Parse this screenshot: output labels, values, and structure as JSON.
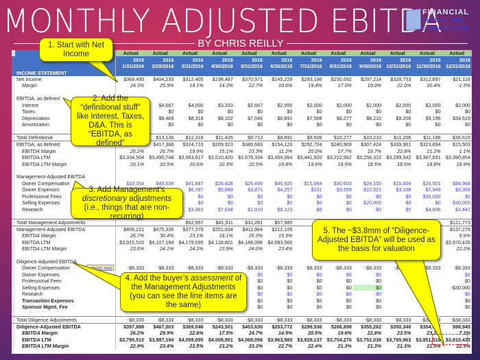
{
  "title": "MONTHLY ADJUSTED EBITDA",
  "byline": "BY CHRIS REILLY",
  "logo": {
    "line1": "FINANCIAL",
    "line2": "MODELING",
    "line3": "EDUCATION"
  },
  "colors": {
    "header_blue": "#4472c4",
    "actual_green": "#a9d08e",
    "adjustment_blue": "#3a3af0",
    "callout": "#ffff00"
  },
  "sheet": {
    "actual": [
      "Actual",
      "Actual",
      "Actual",
      "Actual",
      "Actual",
      "Actual",
      "Actual",
      "Actual",
      "Actual",
      "Actual",
      "Actual",
      "Actual"
    ],
    "years": [
      "2016",
      "2016",
      "2016",
      "2016",
      "2016",
      "2016",
      "2016",
      "2016",
      "2016",
      "2016",
      "2016",
      "2016"
    ],
    "dates": [
      "1/31/2016",
      "2/29/2016",
      "3/31/2016",
      "4/30/2016",
      "5/31/2016",
      "6/30/2016",
      "7/31/2016",
      "8/31/2016",
      "9/30/2016",
      "10/31/2016",
      "11/30/2016",
      "12/31/2016"
    ],
    "section": "INCOME STATEMENT",
    "rows": [
      {
        "label": "Net Income",
        "style": "",
        "values": [
          "$369,495",
          "$404,233",
          "$312,405",
          "$198,487",
          "$370,971",
          "$145,229",
          "$283,196",
          "$230,692",
          "$297,214",
          "$328,753",
          "$312,697",
          "-$21,116"
        ]
      },
      {
        "label": "Margin",
        "style": "italic",
        "values": [
          "24.3%",
          "25.9%",
          "19.1%",
          "14.3%",
          "22.7%",
          "10.6%",
          "19.4%",
          "17.0%",
          "19.0%",
          "22.0%",
          "20.4%",
          "-1.5%"
        ]
      },
      {
        "label": "",
        "style": "",
        "values": []
      },
      {
        "label": "EBITDA, as defined",
        "style": "",
        "values": []
      },
      {
        "label": "Interest",
        "style": "sub",
        "values": [
          "",
          "$4,667",
          "$4,000",
          "$3,333",
          "$2,667",
          "$2,000",
          "$2,000",
          "$2,000",
          "$2,000",
          "$2,000",
          "$2,000",
          "$2,000"
        ]
      },
      {
        "label": "Taxes",
        "style": "sub",
        "values": [
          "",
          "$0",
          "$0",
          "$0",
          "$0",
          "$0",
          "$0",
          "$0",
          "$0",
          "$0",
          "$0",
          "$0"
        ]
      },
      {
        "label": "Depreciation",
        "style": "sub",
        "values": [
          "",
          "$8,469",
          "$8,318",
          "$8,102",
          "$7,046",
          "$6,891",
          "$7,508",
          "$8,277",
          "$8,210",
          "$9,208",
          "$9,196",
          "$34,619"
        ]
      },
      {
        "label": "Amortization",
        "style": "sub",
        "values": [
          "",
          "$0",
          "$0",
          "$0",
          "$0",
          "$0",
          "$0",
          "$0",
          "$0",
          "$0",
          "$0",
          "$0"
        ]
      },
      {
        "label": "",
        "style": "",
        "values": []
      },
      {
        "label": "Total Definitional",
        "style": "total",
        "values": [
          "",
          "$13,136",
          "$12,318",
          "$11,435",
          "$9,713",
          "$8,891",
          "$9,508",
          "$10,277",
          "$10,210",
          "$11,208",
          "$11,196",
          "$36,619"
        ]
      },
      {
        "label": "EBITDA, as defined",
        "style": "result",
        "values": [
          "",
          "$417,368",
          "$324,723",
          "$209,923",
          "$380,683",
          "$154,120",
          "$292,704",
          "$240,969",
          "$307,424",
          "$339,961",
          "$323,894",
          "$15,503"
        ]
      },
      {
        "label": "EBITDA Margin",
        "style": "italic",
        "values": [
          "25.2%",
          "26.7%",
          "19.9%",
          "15.1%",
          "23.3%",
          "11.2%",
          "20.0%",
          "17.7%",
          "19.7%",
          "22.8%",
          "21.2%",
          "1.1%"
        ]
      },
      {
        "label": "EBITDA LTM",
        "style": "sub",
        "values": [
          "$3,334,504",
          "$3,495,748",
          "$3,563,617",
          "$3,510,420",
          "$3,578,334",
          "$3,454,064",
          "$3,441,920",
          "$3,222,962",
          "$3,256,312",
          "$3,289,542",
          "$3,367,831",
          "$3,390,854"
        ]
      },
      {
        "label": "EBITDA LTM Margin",
        "style": "italic",
        "values": [
          "20.1%",
          "20.5%",
          "20.6%",
          "20.3%",
          "20.5%",
          "19.8%",
          "19.6%",
          "18.5%",
          "18.5%",
          "18.6%",
          "18.8%",
          "18.9%"
        ]
      },
      {
        "label": "",
        "style": "",
        "values": []
      },
      {
        "label": "Management-Adjusted EBITDA",
        "style": "",
        "values": []
      },
      {
        "label": "Owner Compensation",
        "style": "sub blue",
        "values": [
          "$33,354",
          "$43,034",
          "$41,887",
          "$28,428",
          "$25,499",
          "$45,605",
          "$15,064",
          "$30,603",
          "$24,150",
          "$15,604",
          "$26,501",
          "$84,968"
        ]
      },
      {
        "label": "Owner Expenses",
        "style": "sub blue",
        "values": [
          "",
          "",
          "$6,787",
          "$5,849",
          "$3,871",
          "$4,257",
          "$101",
          "$3,659",
          "$12,021",
          "$3,108",
          "$7,949",
          "$3,365"
        ]
      },
      {
        "label": "Professional Fees",
        "style": "sub blue",
        "values": [
          "",
          "",
          "$0",
          "$0",
          "$0",
          "$0",
          "$0",
          "$0",
          "$0",
          "$0",
          "$30,000",
          "$0"
        ]
      },
      {
        "label": "Selling Expenses",
        "style": "sub blue",
        "values": [
          "",
          "",
          "$0",
          "$0",
          "$0",
          "$0",
          "$0",
          "$0",
          "$20,000",
          "$0",
          "$0",
          "$30,000"
        ]
      },
      {
        "label": "Research",
        "style": "sub blue",
        "values": [
          "",
          "",
          "$3,983",
          "$7,634",
          "$1,910",
          "$8,123",
          "$0",
          "$0",
          "$0",
          "$0",
          "$4,606",
          "$3,441"
        ]
      },
      {
        "label": "",
        "style": "",
        "values": []
      },
      {
        "label": "Total Management Adjustments",
        "style": "total",
        "values": [
          "",
          "",
          "$52,657",
          "$41,911",
          "$31,281",
          "$57,985",
          "",
          "",
          "",
          "",
          "",
          "$121,773"
        ]
      },
      {
        "label": "Management-Adjusted EBITDA",
        "style": "result",
        "values": [
          "$406,221",
          "$475,336",
          "$377,379",
          "$251,834",
          "$411,964",
          "$212,105",
          "",
          "",
          "",
          "",
          "",
          "$137,276"
        ]
      },
      {
        "label": "EBITDA Margin",
        "style": "italic",
        "values": [
          "26.7%",
          "30.4%",
          "23.1%",
          "18.1%",
          "25.3%",
          "15.5%",
          "",
          "",
          "",
          "",
          "",
          "9.9%"
        ]
      },
      {
        "label": "EBITDA LTM",
        "style": "sub",
        "values": [
          "$3,915,510",
          "$4,107,194",
          "$4,179,095",
          "$4,128,801",
          "$4,188,096",
          "$4,083,565",
          "",
          "",
          "",
          "",
          "",
          "$3,970,435"
        ]
      },
      {
        "label": "EBITDA LTM Margin",
        "style": "italic",
        "values": [
          "23.6%",
          "24.1%",
          "24.2%",
          "23.9%",
          "24.0%",
          "23.4%",
          "",
          "",
          "",
          "",
          "",
          "22.2%"
        ]
      },
      {
        "label": "",
        "style": "",
        "values": []
      },
      {
        "label": "Diligence-Adjusted EBITDA",
        "style": "",
        "values": []
      },
      {
        "label": "Owner Compensation",
        "style": "sub",
        "input": "$600,000",
        "values": [
          "-$8,333",
          "-$8,333",
          "-$8,333",
          "-$8,333",
          "-$8,333",
          "-$8,333",
          "-$8,333",
          "-$8,333",
          "-$8,333",
          "-$8,333",
          "-$8,333",
          "-$8,333"
        ]
      },
      {
        "label": "Owner Expenses",
        "style": "sub blue",
        "values": [
          "",
          "",
          "",
          "",
          "$0",
          "$0",
          "$0",
          "$0",
          "$0",
          "",
          "",
          "$0"
        ]
      },
      {
        "label": "Professional Fees",
        "style": "sub",
        "values": [
          "",
          "",
          "",
          "",
          "$0",
          "$0",
          "$0",
          "$0",
          "$0",
          "",
          "",
          "$0"
        ]
      },
      {
        "label": "Selling Expenses",
        "style": "sub",
        "values": [
          "",
          "",
          "",
          "",
          "$0",
          "$0",
          "$0",
          "$0",
          "$0",
          "",
          "",
          "-$30,000"
        ]
      },
      {
        "label": "Research",
        "style": "sub blue",
        "values": [
          "",
          "",
          "",
          "",
          "$0",
          "$0",
          "$0",
          "$0",
          "$0",
          "",
          "",
          "$0"
        ]
      },
      {
        "label": "Transaction Expenses",
        "style": "boldsub",
        "values": [
          "",
          "",
          "",
          "",
          "$0",
          "$0",
          "$0",
          "$0",
          "$0",
          "",
          "",
          "$0"
        ]
      },
      {
        "label": "Sponsor Mgmt. Fee",
        "style": "boldsub",
        "values": [
          "",
          "",
          "",
          "",
          "$0",
          "$0",
          "$0",
          "$0",
          "$0",
          "",
          "",
          "$0"
        ]
      },
      {
        "label": "",
        "style": "",
        "values": []
      },
      {
        "label": "Total Diligence Adjustments",
        "style": "total",
        "values": [
          "-$8,333",
          "-$8,333",
          "-$8,333",
          "-$8,333",
          "-$8,333",
          "-$8,333",
          "-$8,333",
          "-$8,333",
          "-$8,333",
          "-$8,333",
          "-$38,333",
          "-$38,333"
        ]
      },
      {
        "label": "Diligence-Adjusted EBITDA",
        "style": "result strong",
        "values": [
          "$397,888",
          "$467,003",
          "$369,046",
          "$243,501",
          "$403,630",
          "$203,772",
          "$299,536",
          "$266,898",
          "$355,262",
          "$350,340",
          "$354,617",
          "$98,945"
        ]
      },
      {
        "label": "EBITDA Margin",
        "style": "bolditalic",
        "values": [
          "26.2%",
          "29.9%",
          "22.6%",
          "17.5%",
          "24.7%",
          "14.9%",
          "20.5%",
          "19.6%",
          "22.8%",
          "23.5%",
          "23.2%",
          "7.2%"
        ]
      },
      {
        "label": "EBITDA LTM",
        "style": "boldrow",
        "values": [
          "$3,795,510",
          "$3,987,194",
          "$4,059,095",
          "$4,008,801",
          "$4,068,096",
          "$3,963,565",
          "$3,929,137",
          "$3,704,276",
          "$3,752,038",
          "$3,765,963",
          "$3,851,516",
          "$3,810,435"
        ]
      },
      {
        "label": "EBITDA LTM Margin",
        "style": "bolditalic",
        "values": [
          "22.9%",
          "23.4%",
          "23.5%",
          "23.2%",
          "23.3%",
          "22.7%",
          "22.4%",
          "21.3%",
          "21.3%",
          "21.3%",
          "21.5%",
          "22.5%"
        ]
      }
    ]
  },
  "callouts": [
    {
      "text": "1. Start with Net Income"
    },
    {
      "text": "2. Add the “definitional stuff” like Interest, Taxes, D&A. This is “EBITDA, as defined”"
    },
    {
      "pre": "3. Add Management’s ",
      "em": "discretionary",
      "post": " adjustments (i.e., things that are non-recurring)"
    },
    {
      "pre": "4. Add the buyer’s ",
      "em": "assessment",
      "post": " of the Management Adjustments (you can see the line items are the same)"
    },
    {
      "text": "5. The ~$3.8mm of “Diligence-Adjusted EBITDA” will be used as the basis for valuation"
    }
  ]
}
